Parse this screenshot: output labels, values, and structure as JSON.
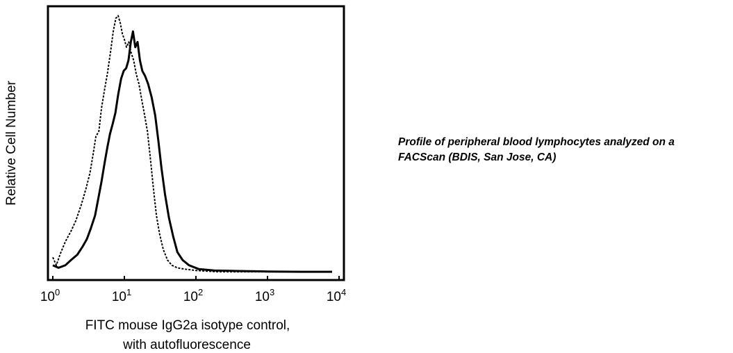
{
  "chart_data": {
    "type": "line",
    "title": "",
    "ylabel": "Relative Cell Number",
    "xlabel_lines": [
      "FITC mouse IgG2a isotype control,",
      "with autofluorescence"
    ],
    "x_scale": "log",
    "xlim": [
      1,
      10000
    ],
    "ylim": [
      0,
      100
    ],
    "y_ticks_labeled": false,
    "grid": false,
    "legend": "none",
    "x_ticks": [
      {
        "base": "10",
        "exp": "0",
        "value": 1
      },
      {
        "base": "10",
        "exp": "1",
        "value": 10
      },
      {
        "base": "10",
        "exp": "2",
        "value": 100
      },
      {
        "base": "10",
        "exp": "3",
        "value": 1000
      },
      {
        "base": "10",
        "exp": "4",
        "value": 10000
      }
    ],
    "series": [
      {
        "style": "dotted",
        "color": "#000000",
        "x": [
          1.0,
          1.12,
          1.26,
          1.5,
          1.8,
          2.1,
          2.5,
          2.9,
          3.3,
          3.7,
          4.0,
          4.4,
          4.8,
          5.3,
          5.8,
          6.4,
          7.0,
          7.6,
          8.2,
          8.8,
          9.4,
          10.0,
          10.7,
          11.5,
          12.4,
          13.5,
          14.6,
          16.0,
          17.5,
          19.2,
          21.0,
          23.0,
          25.5,
          28.0,
          31.0,
          35.0,
          40.0,
          46.0,
          55.0,
          70.0,
          100.0,
          200.0,
          500.0,
          1000.0,
          2000.0,
          4000.0,
          8000.0
        ],
        "y": [
          6,
          3,
          7,
          12,
          16,
          20,
          26,
          32,
          38,
          46,
          52,
          54,
          63,
          70,
          76,
          84,
          92,
          97,
          98,
          95,
          91,
          89,
          86,
          88,
          84,
          81,
          76,
          72,
          66,
          60,
          54,
          44,
          32,
          22,
          15,
          9,
          5,
          3,
          2,
          1.5,
          1,
          0.5,
          0.5,
          0.5,
          0.5,
          0.5,
          0.5
        ]
      },
      {
        "style": "solid",
        "color": "#000000",
        "x": [
          1.0,
          1.2,
          1.5,
          1.8,
          2.2,
          2.6,
          3.0,
          3.4,
          3.9,
          4.3,
          4.8,
          5.3,
          5.8,
          6.3,
          6.9,
          7.5,
          8.2,
          9.0,
          9.8,
          10.6,
          11.4,
          12.3,
          13.2,
          14.2,
          15.3,
          16.5,
          17.8,
          19.5,
          21.5,
          24.0,
          27.0,
          30.0,
          33.0,
          37.0,
          42.0,
          48.0,
          55.0,
          65.0,
          80.0,
          110.0,
          180.0,
          400.0,
          1000.0,
          3000.0,
          8000.0
        ],
        "y": [
          3,
          2,
          3,
          5,
          7,
          10,
          13,
          17,
          22,
          28,
          35,
          42,
          48,
          53,
          57,
          61,
          68,
          74,
          77,
          78,
          81,
          88,
          92,
          86,
          88,
          81,
          77,
          75,
          72,
          67,
          60,
          50,
          40,
          30,
          21,
          14,
          8,
          5,
          3,
          1.5,
          1,
          0.8,
          0.6,
          0.5,
          0.5
        ]
      }
    ]
  },
  "caption": {
    "line1": "Profile of peripheral blood lymphocytes analyzed on a",
    "line2": "FACScan (BDIS, San Jose, CA)"
  }
}
